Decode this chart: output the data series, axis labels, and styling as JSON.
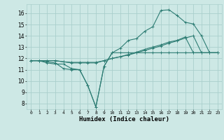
{
  "bg_color": "#cde8e5",
  "line_color": "#2e7d74",
  "grid_color": "#aacfcc",
  "xlabel": "Humidex (Indice chaleur)",
  "ylim": [
    7.5,
    16.8
  ],
  "xlim": [
    -0.5,
    23.5
  ],
  "yticks": [
    8,
    9,
    10,
    11,
    12,
    13,
    14,
    15,
    16
  ],
  "xticks": [
    0,
    1,
    2,
    3,
    4,
    5,
    6,
    7,
    8,
    9,
    10,
    11,
    12,
    13,
    14,
    15,
    16,
    17,
    18,
    19,
    20,
    21,
    22,
    23
  ],
  "series": [
    {
      "x": [
        0,
        1,
        2,
        3,
        4,
        5,
        6,
        7,
        8,
        9,
        10,
        11,
        12,
        13,
        14,
        15,
        16,
        17,
        18,
        19,
        20,
        21,
        22,
        23
      ],
      "y": [
        11.8,
        11.8,
        11.6,
        11.5,
        11.5,
        11.1,
        11.0,
        9.6,
        7.7,
        11.3,
        12.5,
        12.5,
        12.5,
        12.5,
        12.5,
        12.5,
        12.5,
        12.5,
        12.5,
        12.5,
        12.5,
        12.5,
        12.5,
        12.5
      ]
    },
    {
      "x": [
        0,
        1,
        2,
        3,
        4,
        5,
        6,
        7,
        8,
        9,
        10,
        11,
        12,
        13,
        14,
        15,
        16,
        17,
        18,
        19,
        20,
        21,
        22,
        23
      ],
      "y": [
        11.8,
        11.8,
        11.7,
        11.6,
        11.1,
        11.0,
        11.0,
        9.6,
        7.7,
        11.3,
        12.5,
        12.9,
        13.6,
        13.75,
        14.4,
        14.8,
        16.25,
        16.3,
        15.8,
        15.2,
        15.05,
        14.0,
        12.5,
        12.5
      ]
    },
    {
      "x": [
        0,
        1,
        2,
        3,
        4,
        5,
        6,
        7,
        8,
        9,
        10,
        11,
        12,
        13,
        14,
        15,
        16,
        17,
        18,
        19,
        20,
        21,
        22,
        23
      ],
      "y": [
        11.8,
        11.8,
        11.8,
        11.8,
        11.7,
        11.6,
        11.6,
        11.6,
        11.6,
        11.8,
        12.0,
        12.15,
        12.3,
        12.5,
        12.7,
        12.9,
        13.1,
        13.35,
        13.55,
        13.8,
        14.0,
        12.5,
        12.5,
        12.5
      ]
    },
    {
      "x": [
        0,
        1,
        2,
        3,
        4,
        5,
        6,
        7,
        8,
        9,
        10,
        11,
        12,
        13,
        14,
        15,
        16,
        17,
        18,
        19,
        20,
        21,
        22,
        23
      ],
      "y": [
        11.8,
        11.8,
        11.8,
        11.8,
        11.7,
        11.65,
        11.65,
        11.65,
        11.65,
        11.8,
        12.0,
        12.15,
        12.35,
        12.55,
        12.8,
        13.0,
        13.2,
        13.45,
        13.6,
        13.9,
        12.5,
        12.5,
        12.5,
        12.5
      ]
    }
  ]
}
